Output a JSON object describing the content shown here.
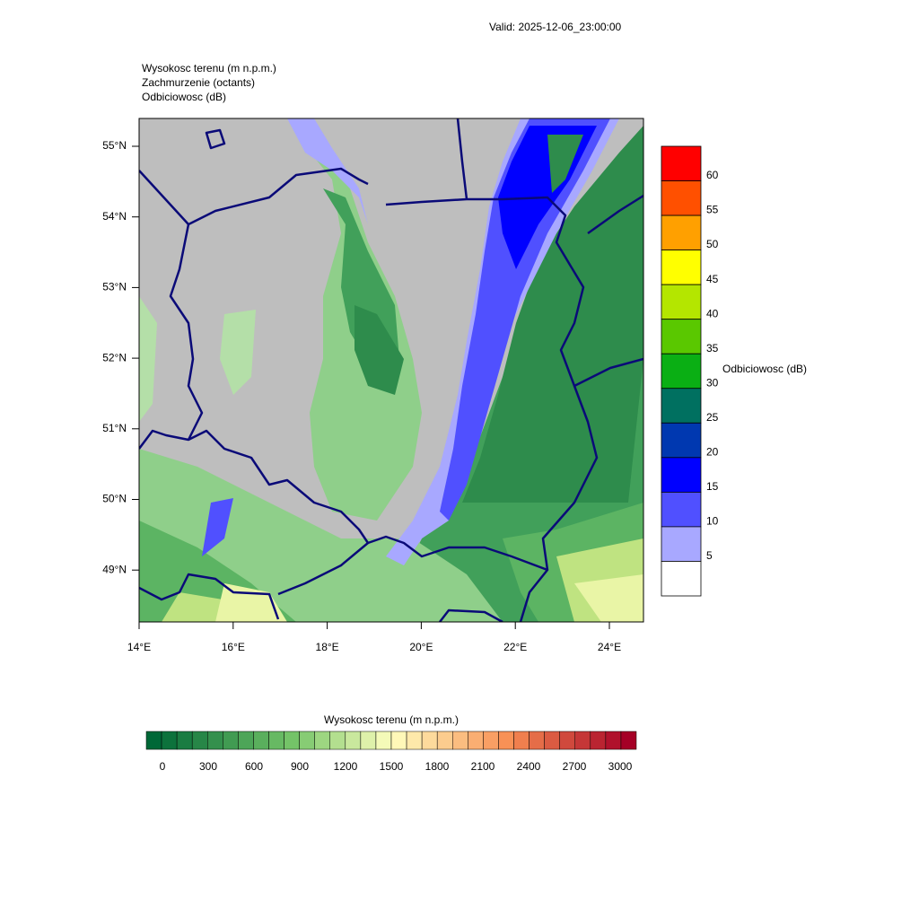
{
  "valid": "Valid: 2025-12-06_23:00:00",
  "titles": [
    "Wysokosc terenu   (m n.p.m.)",
    "Zachmurzenie   (octants)",
    "Odbiciowosc   (dB)"
  ],
  "map": {
    "lat_labels": [
      "55°N",
      "54°N",
      "53°N",
      "52°N",
      "51°N",
      "50°N",
      "49°N"
    ],
    "lon_labels": [
      "14°E",
      "16°E",
      "18°E",
      "20°E",
      "22°E",
      "24°E"
    ]
  },
  "reflectivity_legend": {
    "title": "Odbiciowosc  (dB)",
    "labels": [
      "60",
      "55",
      "50",
      "45",
      "40",
      "35",
      "30",
      "25",
      "20",
      "15",
      "10",
      "5"
    ]
  },
  "terrain_legend": {
    "title": "Wysokosc terenu  (m n.p.m.)",
    "labels": [
      "0",
      "300",
      "600",
      "900",
      "1200",
      "1500",
      "1800",
      "2100",
      "2400",
      "2700",
      "3000"
    ]
  }
}
